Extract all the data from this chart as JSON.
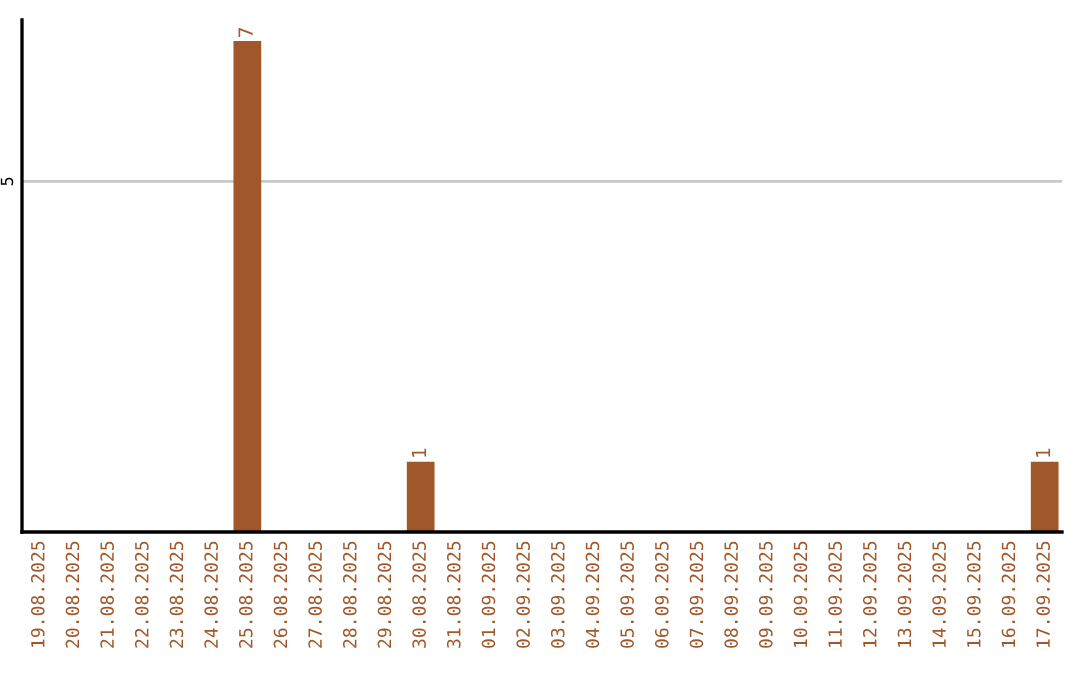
{
  "chart_data": {
    "type": "bar",
    "categories": [
      "19.08.2025",
      "20.08.2025",
      "21.08.2025",
      "22.08.2025",
      "23.08.2025",
      "24.08.2025",
      "25.08.2025",
      "26.08.2025",
      "27.08.2025",
      "28.08.2025",
      "29.08.2025",
      "30.08.2025",
      "31.08.2025",
      "01.09.2025",
      "02.09.2025",
      "03.09.2025",
      "04.09.2025",
      "05.09.2025",
      "06.09.2025",
      "07.09.2025",
      "08.09.2025",
      "09.09.2025",
      "10.09.2025",
      "11.09.2025",
      "12.09.2025",
      "13.09.2025",
      "14.09.2025",
      "15.09.2025",
      "16.09.2025",
      "17.09.2025"
    ],
    "values": [
      0,
      0,
      0,
      0,
      0,
      0,
      7,
      0,
      0,
      0,
      0,
      1,
      0,
      0,
      0,
      0,
      0,
      0,
      0,
      0,
      0,
      0,
      0,
      0,
      0,
      0,
      0,
      0,
      0,
      1
    ],
    "value_labels": [
      null,
      null,
      null,
      null,
      null,
      null,
      "7",
      null,
      null,
      null,
      null,
      "1",
      null,
      null,
      null,
      null,
      null,
      null,
      null,
      null,
      null,
      null,
      null,
      null,
      null,
      null,
      null,
      null,
      null,
      "1"
    ],
    "color": "#a0582a",
    "ylim": [
      0,
      7.3
    ],
    "yticks": [
      5
    ],
    "grid": "y"
  }
}
